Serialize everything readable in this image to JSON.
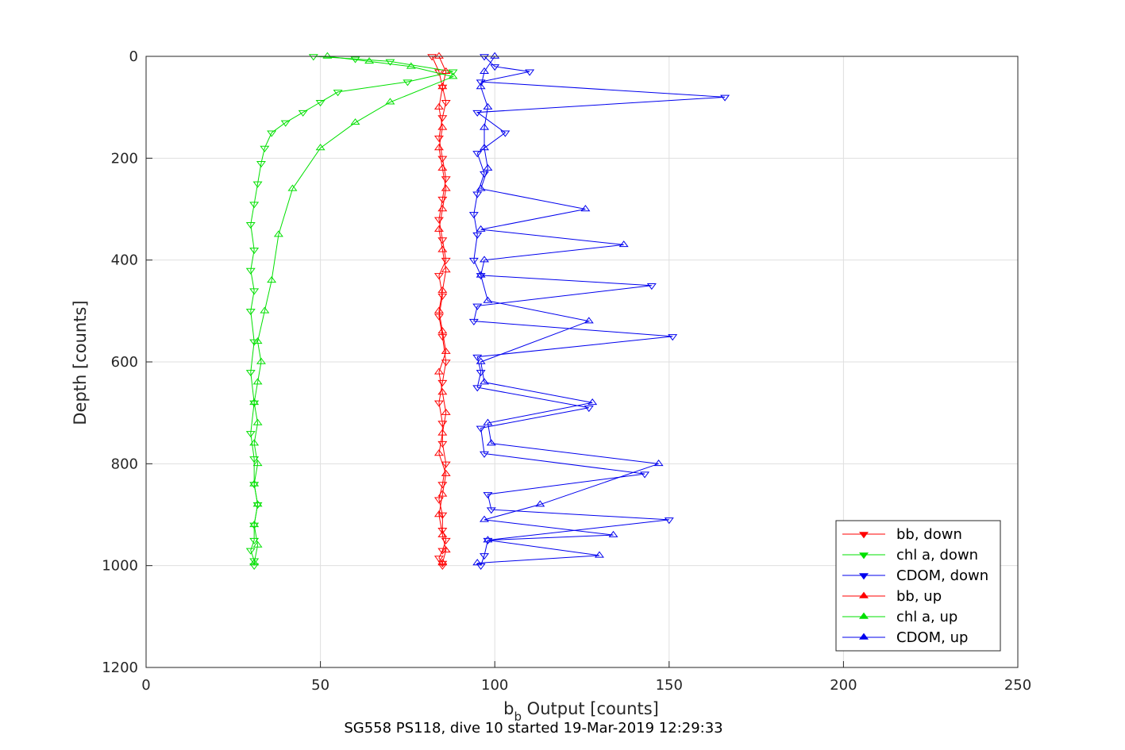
{
  "chart_data": {
    "type": "scatter",
    "title": "",
    "xlabel_main": "b",
    "xlabel_sub": "b",
    "xlabel_rest": " Output [counts]",
    "ylabel": "Depth [counts]",
    "footer": "SG558 PS118, dive 10 started 19-Mar-2019 12:29:33",
    "xlim": [
      0,
      250
    ],
    "ylim": [
      0,
      1200
    ],
    "y_reversed": true,
    "xticks": [
      0,
      50,
      100,
      150,
      200,
      250
    ],
    "yticks": [
      0,
      200,
      400,
      600,
      800,
      1000,
      1200
    ],
    "grid": true,
    "legend_position": "bottom-right",
    "series": [
      {
        "name": "bb, down",
        "color": "#ff0000",
        "marker": "triangle-down",
        "x": [
          82,
          84,
          85,
          86,
          85,
          84,
          85,
          86,
          85,
          84,
          85,
          86,
          84,
          85,
          84,
          85,
          86,
          85,
          84,
          85,
          85,
          86,
          85,
          84,
          85,
          85,
          86,
          85,
          84,
          85,
          85
        ],
        "y": [
          0,
          30,
          60,
          90,
          120,
          160,
          200,
          240,
          280,
          320,
          360,
          400,
          430,
          470,
          510,
          550,
          600,
          640,
          680,
          720,
          760,
          800,
          840,
          870,
          900,
          930,
          950,
          970,
          985,
          995,
          1000
        ]
      },
      {
        "name": "chl a, down",
        "color": "#00e000",
        "marker": "triangle-down",
        "x": [
          48,
          60,
          70,
          88,
          75,
          55,
          50,
          45,
          40,
          36,
          34,
          33,
          32,
          31,
          30,
          31,
          30,
          31,
          30,
          31,
          30,
          31,
          30,
          31,
          31,
          32,
          31,
          31,
          30,
          31,
          31
        ],
        "y": [
          0,
          5,
          10,
          30,
          50,
          70,
          90,
          110,
          130,
          150,
          180,
          210,
          250,
          290,
          330,
          380,
          420,
          460,
          500,
          560,
          620,
          680,
          740,
          790,
          840,
          880,
          920,
          950,
          970,
          990,
          1000
        ]
      },
      {
        "name": "CDOM, down",
        "color": "#0000ee",
        "marker": "triangle-down",
        "x": [
          97,
          100,
          110,
          96,
          166,
          95,
          103,
          95,
          97,
          95,
          94,
          95,
          94,
          96,
          145,
          95,
          94,
          151,
          95,
          96,
          95,
          127,
          96,
          97,
          143,
          98,
          99,
          150,
          98,
          97,
          96
        ],
        "y": [
          0,
          20,
          30,
          50,
          80,
          110,
          150,
          190,
          230,
          270,
          310,
          350,
          400,
          430,
          450,
          490,
          520,
          550,
          590,
          620,
          650,
          690,
          730,
          780,
          820,
          860,
          890,
          910,
          950,
          980,
          1000
        ]
      },
      {
        "name": "bb, up",
        "color": "#ff0000",
        "marker": "triangle-up",
        "x": [
          85,
          86,
          85,
          84,
          85,
          86,
          84,
          85,
          86,
          85,
          84,
          86,
          85,
          84,
          85,
          86,
          85,
          84,
          85,
          86,
          85,
          84,
          85,
          84,
          85,
          86,
          84
        ],
        "y": [
          995,
          970,
          940,
          900,
          860,
          820,
          780,
          740,
          700,
          660,
          620,
          580,
          540,
          500,
          460,
          420,
          380,
          340,
          300,
          260,
          220,
          180,
          140,
          100,
          60,
          30,
          0
        ]
      },
      {
        "name": "chl a, up",
        "color": "#00e000",
        "marker": "triangle-up",
        "x": [
          31,
          32,
          31,
          32,
          31,
          32,
          31,
          32,
          31,
          32,
          33,
          32,
          34,
          36,
          38,
          42,
          50,
          60,
          70,
          88,
          76,
          64,
          52
        ],
        "y": [
          995,
          960,
          920,
          880,
          840,
          800,
          760,
          720,
          680,
          640,
          600,
          560,
          500,
          440,
          350,
          260,
          180,
          130,
          90,
          40,
          20,
          10,
          0
        ]
      },
      {
        "name": "CDOM, up",
        "color": "#0000ee",
        "marker": "triangle-up",
        "x": [
          95,
          130,
          98,
          134,
          97,
          113,
          147,
          99,
          98,
          128,
          97,
          96,
          127,
          98,
          96,
          97,
          137,
          96,
          126,
          96,
          98,
          97,
          97,
          98,
          96,
          97,
          100
        ],
        "y": [
          995,
          980,
          950,
          940,
          910,
          880,
          800,
          760,
          720,
          680,
          640,
          600,
          520,
          480,
          430,
          400,
          370,
          340,
          300,
          260,
          220,
          180,
          140,
          100,
          60,
          30,
          0
        ]
      }
    ]
  }
}
